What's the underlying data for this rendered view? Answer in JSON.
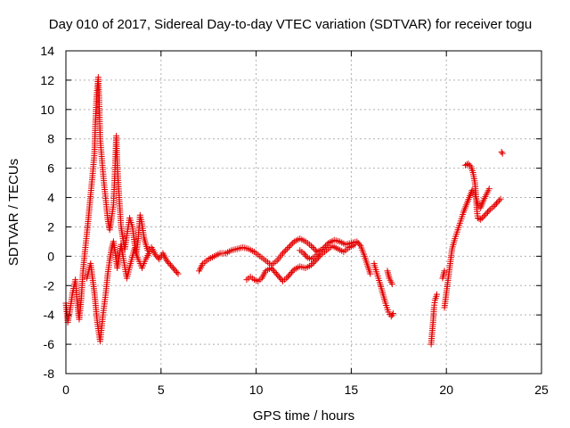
{
  "chart_data": {
    "type": "scatter",
    "title": "Day 010 of 2017, Sidereal Day-to-day VTEC variation (SDTVAR) for receiver togu",
    "xlabel": "GPS time / hours",
    "ylabel": "SDTVAR / TECUs",
    "xlim": [
      0,
      25
    ],
    "ylim": [
      -8,
      14
    ],
    "xticks": [
      "0",
      "5",
      "10",
      "15",
      "20",
      "25"
    ],
    "yticks": [
      "-8",
      "-6",
      "-4",
      "-2",
      "0",
      "2",
      "4",
      "6",
      "8",
      "10",
      "12",
      "14"
    ],
    "grid": true,
    "marker": "+",
    "color": "#e60000",
    "series": [
      {
        "name": "SDTVAR",
        "segments": [
          [
            [
              0.0,
              -3.2
            ],
            [
              0.1,
              -4.5
            ],
            [
              0.2,
              -3.8
            ],
            [
              0.35,
              -2.5
            ],
            [
              0.5,
              -1.6
            ],
            [
              0.6,
              -3.2
            ],
            [
              0.7,
              -4.3
            ],
            [
              0.8,
              -3.0
            ],
            [
              0.9,
              -1.0
            ],
            [
              1.0,
              0.3
            ],
            [
              1.1,
              1.5
            ],
            [
              1.2,
              2.8
            ],
            [
              1.3,
              4.2
            ],
            [
              1.4,
              5.5
            ],
            [
              1.5,
              7.0
            ],
            [
              1.55,
              9.0
            ],
            [
              1.62,
              11.0
            ],
            [
              1.7,
              12.2
            ],
            [
              1.75,
              10.5
            ],
            [
              1.8,
              8.0
            ],
            [
              1.9,
              6.5
            ],
            [
              2.0,
              5.0
            ],
            [
              2.1,
              3.8
            ],
            [
              2.2,
              2.5
            ],
            [
              2.3,
              1.8
            ],
            [
              2.4,
              2.6
            ],
            [
              2.5,
              3.5
            ],
            [
              2.55,
              5.0
            ],
            [
              2.6,
              6.5
            ],
            [
              2.65,
              8.2
            ],
            [
              2.7,
              6.2
            ],
            [
              2.8,
              4.0
            ],
            [
              2.9,
              2.0
            ],
            [
              3.0,
              1.2
            ],
            [
              3.1,
              0.5
            ],
            [
              3.2,
              1.4
            ],
            [
              3.35,
              2.6
            ],
            [
              3.5,
              2.0
            ],
            [
              3.6,
              1.0
            ],
            [
              3.7,
              0.2
            ],
            [
              3.8,
              1.2
            ],
            [
              3.9,
              2.8
            ],
            [
              4.0,
              2.2
            ],
            [
              4.1,
              1.3
            ],
            [
              4.2,
              0.8
            ],
            [
              4.3,
              0.4
            ],
            [
              4.5,
              0.6
            ],
            [
              4.7,
              0.1
            ],
            [
              4.9,
              -0.2
            ],
            [
              5.1,
              0.2
            ],
            [
              5.3,
              -0.3
            ],
            [
              5.5,
              -0.6
            ],
            [
              5.7,
              -0.9
            ],
            [
              5.9,
              -1.2
            ]
          ],
          [
            [
              1.1,
              -1.5
            ],
            [
              1.3,
              -0.5
            ],
            [
              1.5,
              -2.5
            ],
            [
              1.65,
              -4.5
            ],
            [
              1.8,
              -5.8
            ],
            [
              1.95,
              -4.0
            ],
            [
              2.1,
              -2.5
            ],
            [
              2.2,
              -1.2
            ],
            [
              2.3,
              -0.3
            ],
            [
              2.4,
              0.5
            ],
            [
              2.5,
              1.0
            ],
            [
              2.6,
              0.2
            ],
            [
              2.7,
              -0.8
            ],
            [
              2.8,
              0.0
            ],
            [
              2.9,
              0.8
            ],
            [
              3.0,
              0.0
            ],
            [
              3.2,
              -1.5
            ],
            [
              3.4,
              -0.5
            ],
            [
              3.6,
              0.5
            ],
            [
              3.8,
              -0.2
            ],
            [
              4.0,
              -0.8
            ],
            [
              4.2,
              -0.2
            ],
            [
              4.4,
              0.3
            ]
          ],
          [
            [
              7.0,
              -1.0
            ],
            [
              7.2,
              -0.5
            ],
            [
              7.5,
              -0.2
            ],
            [
              7.8,
              0.0
            ],
            [
              8.1,
              0.2
            ],
            [
              8.4,
              0.2
            ],
            [
              8.7,
              0.4
            ],
            [
              9.0,
              0.5
            ],
            [
              9.3,
              0.6
            ],
            [
              9.6,
              0.5
            ],
            [
              9.9,
              0.3
            ],
            [
              10.2,
              0.0
            ],
            [
              10.5,
              -0.3
            ],
            [
              10.8,
              -0.6
            ],
            [
              11.1,
              -0.3
            ],
            [
              11.4,
              0.2
            ],
            [
              11.7,
              0.6
            ],
            [
              12.0,
              1.0
            ],
            [
              12.3,
              1.2
            ],
            [
              12.6,
              1.0
            ],
            [
              12.9,
              0.7
            ],
            [
              13.2,
              0.3
            ],
            [
              13.5,
              0.5
            ],
            [
              13.8,
              0.9
            ],
            [
              14.1,
              1.1
            ],
            [
              14.4,
              1.0
            ],
            [
              14.7,
              0.8
            ],
            [
              15.0,
              0.9
            ],
            [
              15.3,
              1.0
            ],
            [
              15.5,
              0.7
            ],
            [
              15.7,
              0.0
            ],
            [
              15.9,
              -0.8
            ],
            [
              16.0,
              -1.2
            ]
          ],
          [
            [
              9.5,
              -1.6
            ],
            [
              9.7,
              -1.4
            ],
            [
              9.9,
              -1.6
            ],
            [
              10.1,
              -1.7
            ],
            [
              10.3,
              -1.5
            ],
            [
              10.5,
              -1.0
            ],
            [
              10.8,
              -0.8
            ],
            [
              11.0,
              -1.1
            ],
            [
              11.2,
              -1.4
            ],
            [
              11.4,
              -1.7
            ],
            [
              11.6,
              -1.5
            ],
            [
              11.8,
              -1.2
            ],
            [
              12.0,
              -0.9
            ],
            [
              12.3,
              -0.7
            ],
            [
              12.6,
              -0.8
            ],
            [
              12.9,
              -0.6
            ],
            [
              13.2,
              -0.2
            ],
            [
              13.4,
              0.1
            ],
            [
              13.7,
              0.4
            ],
            [
              14.0,
              0.7
            ],
            [
              14.3,
              0.5
            ],
            [
              14.6,
              0.3
            ],
            [
              14.9,
              0.6
            ],
            [
              15.2,
              0.8
            ]
          ],
          [
            [
              12.3,
              0.4
            ],
            [
              12.5,
              0.2
            ],
            [
              12.7,
              -0.1
            ],
            [
              12.9,
              -0.2
            ],
            [
              13.1,
              0.0
            ],
            [
              13.3,
              0.2
            ]
          ],
          [
            [
              16.2,
              -0.5
            ],
            [
              16.35,
              -1.2
            ],
            [
              16.5,
              -1.8
            ],
            [
              16.65,
              -2.5
            ],
            [
              16.8,
              -3.2
            ],
            [
              16.95,
              -3.8
            ],
            [
              17.1,
              -4.1
            ],
            [
              17.2,
              -3.9
            ]
          ],
          [
            [
              16.9,
              -1.0
            ],
            [
              17.0,
              -1.5
            ],
            [
              17.15,
              -1.9
            ]
          ],
          [
            [
              19.2,
              -6.0
            ],
            [
              19.25,
              -5.2
            ],
            [
              19.3,
              -4.5
            ],
            [
              19.35,
              -3.5
            ],
            [
              19.4,
              -3.0
            ],
            [
              19.5,
              -2.6
            ]
          ],
          [
            [
              19.9,
              -3.5
            ],
            [
              20.0,
              -2.5
            ],
            [
              20.1,
              -1.5
            ],
            [
              20.2,
              -0.5
            ],
            [
              20.3,
              0.5
            ],
            [
              20.45,
              1.2
            ],
            [
              20.6,
              1.8
            ],
            [
              20.75,
              2.4
            ],
            [
              20.9,
              3.0
            ],
            [
              21.05,
              3.5
            ],
            [
              21.2,
              4.0
            ],
            [
              21.35,
              4.5
            ],
            [
              21.5,
              4.2
            ],
            [
              21.65,
              3.6
            ],
            [
              21.8,
              3.3
            ],
            [
              21.95,
              3.8
            ],
            [
              22.1,
              4.2
            ],
            [
              22.25,
              4.6
            ]
          ],
          [
            [
              19.8,
              -1.5
            ],
            [
              19.9,
              -1.0
            ]
          ],
          [
            [
              21.0,
              6.2
            ],
            [
              21.15,
              6.3
            ],
            [
              21.3,
              6.1
            ],
            [
              21.4,
              5.7
            ],
            [
              21.5,
              5.0
            ],
            [
              21.55,
              4.2
            ],
            [
              21.6,
              3.2
            ],
            [
              21.65,
              2.6
            ],
            [
              21.8,
              2.5
            ],
            [
              21.95,
              2.7
            ],
            [
              22.1,
              2.9
            ],
            [
              22.3,
              3.2
            ],
            [
              22.5,
              3.4
            ],
            [
              22.7,
              3.7
            ],
            [
              22.85,
              3.9
            ]
          ],
          [
            [
              22.9,
              7.1
            ],
            [
              22.95,
              7.0
            ]
          ]
        ]
      }
    ]
  }
}
